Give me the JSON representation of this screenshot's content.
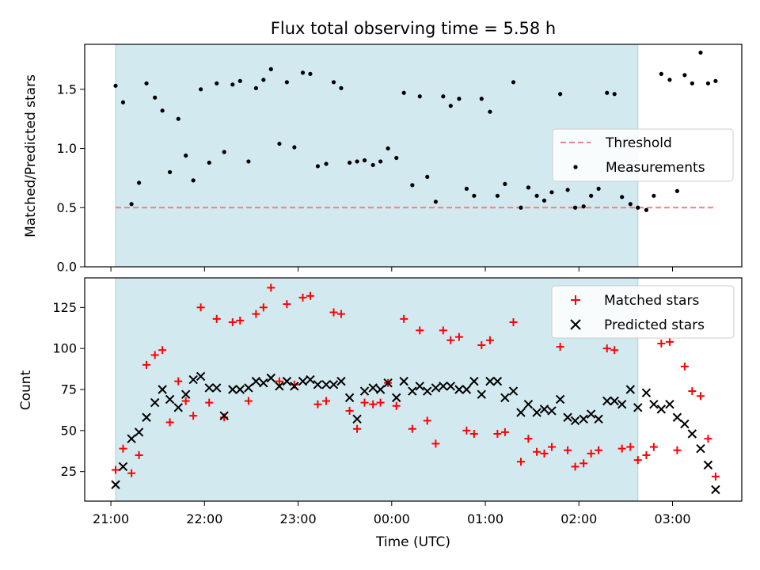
{
  "chart_data": {
    "title": "Flux total observing time = 5.58 h",
    "shared_x": {
      "label": "Time (UTC)",
      "unit": "hours since 21:00 UTC",
      "range": [
        -0.28,
        6.74
      ],
      "ticks": [
        0,
        1,
        2,
        3,
        4,
        5,
        6
      ],
      "tick_labels": [
        "21:00",
        "22:00",
        "23:00",
        "00:00",
        "01:00",
        "02:00",
        "03:00"
      ]
    },
    "shaded_window": {
      "x_start": 0.05,
      "x_end": 5.63,
      "color": "#d3e9f0"
    },
    "panels": [
      {
        "type": "scatter",
        "ylabel": "Matched/Predicted stars",
        "ylim": [
          0,
          1.88
        ],
        "yticks": [
          0.0,
          0.5,
          1.0,
          1.5
        ],
        "ytick_labels": [
          "0.0",
          "0.5",
          "1.0",
          "1.5"
        ],
        "legend_position": "center-right",
        "threshold": {
          "name": "Threshold",
          "y": 0.5,
          "x_range": [
            0.05,
            6.47
          ],
          "color": "#f08080"
        },
        "series": [
          {
            "name": "Measurements",
            "marker": "dot",
            "color": "#000000",
            "points": [
              [
                0.05,
                1.53
              ],
              [
                0.13,
                1.39
              ],
              [
                0.22,
                0.53
              ],
              [
                0.3,
                0.71
              ],
              [
                0.38,
                1.55
              ],
              [
                0.47,
                1.43
              ],
              [
                0.55,
                1.32
              ],
              [
                0.63,
                0.8
              ],
              [
                0.72,
                1.25
              ],
              [
                0.8,
                0.94
              ],
              [
                0.88,
                0.73
              ],
              [
                0.96,
                1.5
              ],
              [
                1.05,
                0.88
              ],
              [
                1.13,
                1.55
              ],
              [
                1.21,
                0.97
              ],
              [
                1.3,
                1.54
              ],
              [
                1.38,
                1.57
              ],
              [
                1.47,
                0.89
              ],
              [
                1.55,
                1.51
              ],
              [
                1.63,
                1.58
              ],
              [
                1.71,
                1.67
              ],
              [
                1.8,
                1.04
              ],
              [
                1.88,
                1.56
              ],
              [
                1.96,
                1.01
              ],
              [
                2.05,
                1.64
              ],
              [
                2.13,
                1.63
              ],
              [
                2.21,
                0.85
              ],
              [
                2.3,
                0.87
              ],
              [
                2.38,
                1.56
              ],
              [
                2.46,
                1.51
              ],
              [
                2.55,
                0.88
              ],
              [
                2.63,
                0.89
              ],
              [
                2.71,
                0.9
              ],
              [
                2.8,
                0.86
              ],
              [
                2.88,
                0.89
              ],
              [
                2.96,
                1.0
              ],
              [
                3.05,
                0.92
              ],
              [
                3.13,
                1.47
              ],
              [
                3.22,
                0.69
              ],
              [
                3.3,
                1.44
              ],
              [
                3.38,
                0.76
              ],
              [
                3.47,
                0.55
              ],
              [
                3.55,
                1.44
              ],
              [
                3.63,
                1.36
              ],
              [
                3.72,
                1.42
              ],
              [
                3.8,
                0.66
              ],
              [
                3.88,
                0.6
              ],
              [
                3.96,
                1.42
              ],
              [
                4.05,
                1.31
              ],
              [
                4.13,
                0.6
              ],
              [
                4.21,
                0.7
              ],
              [
                4.3,
                1.56
              ],
              [
                4.38,
                0.5
              ],
              [
                4.46,
                0.67
              ],
              [
                4.55,
                0.6
              ],
              [
                4.63,
                0.56
              ],
              [
                4.71,
                0.63
              ],
              [
                4.8,
                1.46
              ],
              [
                4.88,
                0.65
              ],
              [
                4.96,
                0.5
              ],
              [
                5.05,
                0.51
              ],
              [
                5.13,
                0.6
              ],
              [
                5.21,
                0.66
              ],
              [
                5.3,
                1.47
              ],
              [
                5.38,
                1.46
              ],
              [
                5.46,
                0.59
              ],
              [
                5.55,
                0.53
              ],
              [
                5.63,
                0.5
              ],
              [
                5.72,
                0.48
              ],
              [
                5.8,
                0.6
              ],
              [
                5.88,
                1.63
              ],
              [
                5.97,
                1.58
              ],
              [
                6.05,
                0.64
              ],
              [
                6.13,
                1.62
              ],
              [
                6.21,
                1.55
              ],
              [
                6.3,
                1.81
              ],
              [
                6.38,
                1.55
              ],
              [
                6.46,
                1.57
              ]
            ]
          }
        ]
      },
      {
        "type": "scatter",
        "ylabel": "Count",
        "ylim": [
          7,
          143
        ],
        "yticks": [
          25,
          50,
          75,
          100,
          125
        ],
        "ytick_labels": [
          "25",
          "50",
          "75",
          "100",
          "125"
        ],
        "legend_position": "top-right",
        "series": [
          {
            "name": "Matched stars",
            "marker": "plus",
            "color": "#ff0000",
            "points": [
              [
                0.05,
                26
              ],
              [
                0.13,
                39
              ],
              [
                0.22,
                24
              ],
              [
                0.3,
                35
              ],
              [
                0.38,
                90
              ],
              [
                0.47,
                96
              ],
              [
                0.55,
                99
              ],
              [
                0.63,
                55
              ],
              [
                0.72,
                80
              ],
              [
                0.8,
                68
              ],
              [
                0.88,
                59
              ],
              [
                0.96,
                125
              ],
              [
                1.05,
                67
              ],
              [
                1.13,
                118
              ],
              [
                1.21,
                58
              ],
              [
                1.3,
                116
              ],
              [
                1.38,
                117
              ],
              [
                1.47,
                68
              ],
              [
                1.55,
                121
              ],
              [
                1.63,
                125
              ],
              [
                1.71,
                137
              ],
              [
                1.8,
                80
              ],
              [
                1.88,
                127
              ],
              [
                1.96,
                78
              ],
              [
                2.05,
                131
              ],
              [
                2.13,
                132
              ],
              [
                2.21,
                66
              ],
              [
                2.3,
                68
              ],
              [
                2.38,
                122
              ],
              [
                2.46,
                121
              ],
              [
                2.55,
                62
              ],
              [
                2.63,
                51
              ],
              [
                2.71,
                67
              ],
              [
                2.8,
                66
              ],
              [
                2.88,
                67
              ],
              [
                2.96,
                79
              ],
              [
                3.05,
                65
              ],
              [
                3.13,
                118
              ],
              [
                3.22,
                51
              ],
              [
                3.3,
                111
              ],
              [
                3.38,
                56
              ],
              [
                3.47,
                42
              ],
              [
                3.55,
                111
              ],
              [
                3.63,
                105
              ],
              [
                3.72,
                107
              ],
              [
                3.8,
                50
              ],
              [
                3.88,
                48
              ],
              [
                3.96,
                102
              ],
              [
                4.05,
                105
              ],
              [
                4.13,
                48
              ],
              [
                4.21,
                49
              ],
              [
                4.3,
                116
              ],
              [
                4.38,
                31
              ],
              [
                4.46,
                45
              ],
              [
                4.55,
                37
              ],
              [
                4.63,
                36
              ],
              [
                4.71,
                40
              ],
              [
                4.8,
                101
              ],
              [
                4.88,
                38
              ],
              [
                4.96,
                28
              ],
              [
                5.05,
                30
              ],
              [
                5.13,
                36
              ],
              [
                5.21,
                38
              ],
              [
                5.3,
                100
              ],
              [
                5.38,
                99
              ],
              [
                5.46,
                39
              ],
              [
                5.55,
                40
              ],
              [
                5.63,
                32
              ],
              [
                5.72,
                35
              ],
              [
                5.8,
                40
              ],
              [
                5.88,
                103
              ],
              [
                5.97,
                104
              ],
              [
                6.05,
                38
              ],
              [
                6.13,
                89
              ],
              [
                6.21,
                74
              ],
              [
                6.3,
                71
              ],
              [
                6.38,
                45
              ],
              [
                6.46,
                22
              ]
            ]
          },
          {
            "name": "Predicted stars",
            "marker": "x",
            "color": "#000000",
            "points": [
              [
                0.05,
                17
              ],
              [
                0.13,
                28
              ],
              [
                0.22,
                45
              ],
              [
                0.3,
                49
              ],
              [
                0.38,
                58
              ],
              [
                0.47,
                67
              ],
              [
                0.55,
                75
              ],
              [
                0.63,
                69
              ],
              [
                0.72,
                64
              ],
              [
                0.8,
                72
              ],
              [
                0.88,
                81
              ],
              [
                0.96,
                83
              ],
              [
                1.05,
                76
              ],
              [
                1.13,
                76
              ],
              [
                1.21,
                59
              ],
              [
                1.3,
                75
              ],
              [
                1.38,
                75
              ],
              [
                1.47,
                76
              ],
              [
                1.55,
                80
              ],
              [
                1.63,
                79
              ],
              [
                1.71,
                82
              ],
              [
                1.8,
                77
              ],
              [
                1.88,
                80
              ],
              [
                1.96,
                77
              ],
              [
                2.05,
                80
              ],
              [
                2.13,
                81
              ],
              [
                2.21,
                78
              ],
              [
                2.3,
                78
              ],
              [
                2.38,
                78
              ],
              [
                2.46,
                80
              ],
              [
                2.55,
                70
              ],
              [
                2.63,
                57
              ],
              [
                2.71,
                74
              ],
              [
                2.8,
                76
              ],
              [
                2.88,
                75
              ],
              [
                2.96,
                79
              ],
              [
                3.05,
                70
              ],
              [
                3.13,
                80
              ],
              [
                3.22,
                74
              ],
              [
                3.3,
                77
              ],
              [
                3.38,
                74
              ],
              [
                3.47,
                76
              ],
              [
                3.55,
                77
              ],
              [
                3.63,
                77
              ],
              [
                3.72,
                75
              ],
              [
                3.8,
                75
              ],
              [
                3.88,
                80
              ],
              [
                3.96,
                72
              ],
              [
                4.05,
                80
              ],
              [
                4.13,
                80
              ],
              [
                4.21,
                70
              ],
              [
                4.3,
                74
              ],
              [
                4.38,
                61
              ],
              [
                4.46,
                66
              ],
              [
                4.55,
                61
              ],
              [
                4.63,
                63
              ],
              [
                4.71,
                62
              ],
              [
                4.8,
                69
              ],
              [
                4.88,
                58
              ],
              [
                4.96,
                56
              ],
              [
                5.05,
                57
              ],
              [
                5.13,
                60
              ],
              [
                5.21,
                57
              ],
              [
                5.3,
                68
              ],
              [
                5.38,
                68
              ],
              [
                5.46,
                66
              ],
              [
                5.55,
                75
              ],
              [
                5.63,
                64
              ],
              [
                5.72,
                73
              ],
              [
                5.8,
                66
              ],
              [
                5.88,
                63
              ],
              [
                5.97,
                66
              ],
              [
                6.05,
                58
              ],
              [
                6.13,
                54
              ],
              [
                6.21,
                48
              ],
              [
                6.3,
                39
              ],
              [
                6.38,
                29
              ],
              [
                6.46,
                14
              ]
            ]
          }
        ]
      }
    ]
  }
}
